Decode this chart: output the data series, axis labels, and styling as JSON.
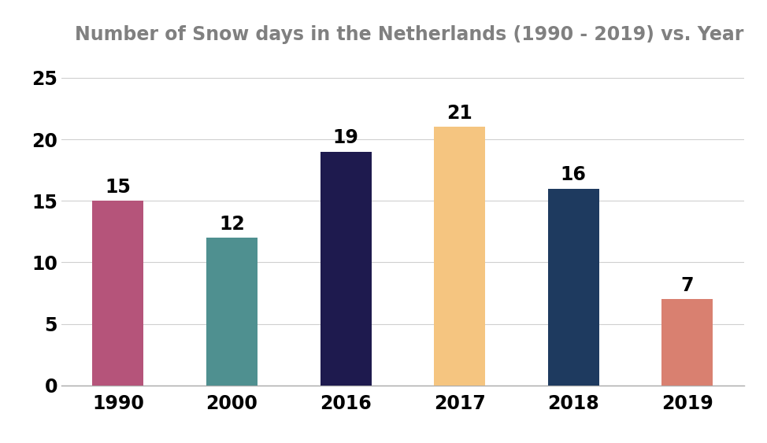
{
  "categories": [
    "1990",
    "2000",
    "2016",
    "2017",
    "2018",
    "2019"
  ],
  "values": [
    15,
    12,
    19,
    21,
    16,
    7
  ],
  "bar_colors": [
    "#b5547a",
    "#4f9090",
    "#1e1a4e",
    "#f5c580",
    "#1e3a5f",
    "#d98070"
  ],
  "title": "Number of Snow days in the Netherlands (1990 - 2019) vs. Year",
  "title_color": "#808080",
  "title_fontsize": 17,
  "ylim": [
    0,
    27
  ],
  "yticks": [
    0,
    5,
    10,
    15,
    20,
    25
  ],
  "tick_fontsize": 17,
  "value_label_fontsize": 17,
  "background_color": "#ffffff",
  "grid_color": "#d0d0d0",
  "bar_width": 0.45
}
